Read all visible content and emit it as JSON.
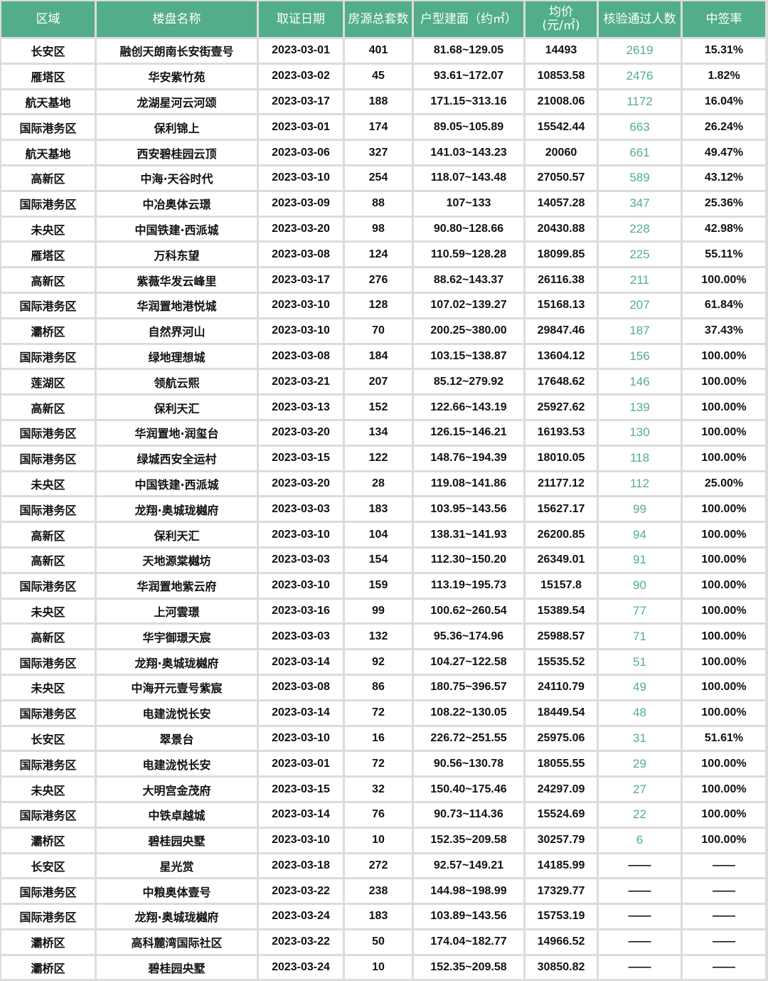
{
  "headers": [
    "区域",
    "楼盘名称",
    "取证日期",
    "房源总套数",
    "户型建面（约㎡）",
    "均价\n(元/㎡)",
    "核验通过人数",
    "中签率"
  ],
  "colors": {
    "header_bg": "#52ad8a",
    "highlight_text": "#52ad8a"
  },
  "rows": [
    [
      "长安区",
      "融创天朗南长安街壹号",
      "2023-03-01",
      "401",
      "81.68~129.05",
      "14493",
      "2619",
      "15.31%"
    ],
    [
      "雁塔区",
      "华安紫竹苑",
      "2023-03-02",
      "45",
      "93.61~172.07",
      "10853.58",
      "2476",
      "1.82%"
    ],
    [
      "航天基地",
      "龙湖星河云河颂",
      "2023-03-17",
      "188",
      "171.15~313.16",
      "21008.06",
      "1172",
      "16.04%"
    ],
    [
      "国际港务区",
      "保利锦上",
      "2023-03-01",
      "174",
      "89.05~105.89",
      "15542.44",
      "663",
      "26.24%"
    ],
    [
      "航天基地",
      "西安碧桂园云顶",
      "2023-03-06",
      "327",
      "141.03~143.23",
      "20060",
      "661",
      "49.47%"
    ],
    [
      "高新区",
      "中海·天谷时代",
      "2023-03-10",
      "254",
      "118.07~143.48",
      "27050.57",
      "589",
      "43.12%"
    ],
    [
      "国际港务区",
      "中冶奥体云璟",
      "2023-03-09",
      "88",
      "107~133",
      "14057.28",
      "347",
      "25.36%"
    ],
    [
      "未央区",
      "中国铁建·西派城",
      "2023-03-20",
      "98",
      "90.80~128.66",
      "20430.88",
      "228",
      "42.98%"
    ],
    [
      "雁塔区",
      "万科东望",
      "2023-03-08",
      "124",
      "110.59~128.28",
      "18099.85",
      "225",
      "55.11%"
    ],
    [
      "高新区",
      "紫薇华发云峰里",
      "2023-03-17",
      "276",
      "88.62~143.37",
      "26116.38",
      "211",
      "100.00%"
    ],
    [
      "国际港务区",
      "华润置地港悦城",
      "2023-03-10",
      "128",
      "107.02~139.27",
      "15168.13",
      "207",
      "61.84%"
    ],
    [
      "灞桥区",
      "自然界河山",
      "2023-03-10",
      "70",
      "200.25~380.00",
      "29847.46",
      "187",
      "37.43%"
    ],
    [
      "国际港务区",
      "绿地理想城",
      "2023-03-08",
      "184",
      "103.15~138.87",
      "13604.12",
      "156",
      "100.00%"
    ],
    [
      "莲湖区",
      "领航云熙",
      "2023-03-21",
      "207",
      "85.12~279.92",
      "17648.62",
      "146",
      "100.00%"
    ],
    [
      "高新区",
      "保利天汇",
      "2023-03-13",
      "152",
      "122.66~143.19",
      "25927.62",
      "139",
      "100.00%"
    ],
    [
      "国际港务区",
      "华润置地·润玺台",
      "2023-03-20",
      "134",
      "126.15~146.21",
      "16193.53",
      "130",
      "100.00%"
    ],
    [
      "国际港务区",
      "绿城西安全运村",
      "2023-03-15",
      "122",
      "148.76~194.39",
      "18010.05",
      "118",
      "100.00%"
    ],
    [
      "未央区",
      "中国铁建·西派城",
      "2023-03-20",
      "28",
      "119.08~141.86",
      "21177.12",
      "112",
      "25.00%"
    ],
    [
      "国际港务区",
      "龙翔·奥城珑樾府",
      "2023-03-03",
      "183",
      "103.95~143.56",
      "15627.17",
      "99",
      "100.00%"
    ],
    [
      "高新区",
      "保利天汇",
      "2023-03-10",
      "104",
      "138.31~141.93",
      "26200.85",
      "94",
      "100.00%"
    ],
    [
      "高新区",
      "天地源棠樾坊",
      "2023-03-03",
      "154",
      "112.30~150.20",
      "26349.01",
      "91",
      "100.00%"
    ],
    [
      "国际港务区",
      "华润置地紫云府",
      "2023-03-10",
      "159",
      "113.19~195.73",
      "15157.8",
      "90",
      "100.00%"
    ],
    [
      "未央区",
      "上河雲璟",
      "2023-03-16",
      "99",
      "100.62~260.54",
      "15389.54",
      "77",
      "100.00%"
    ],
    [
      "高新区",
      "华宇御璟天宸",
      "2023-03-03",
      "132",
      "95.36~174.96",
      "25988.57",
      "71",
      "100.00%"
    ],
    [
      "国际港务区",
      "龙翔·奥城珑樾府",
      "2023-03-14",
      "92",
      "104.27~122.58",
      "15535.52",
      "51",
      "100.00%"
    ],
    [
      "未央区",
      "中海开元壹号紫宸",
      "2023-03-08",
      "86",
      "180.75~396.57",
      "24110.79",
      "49",
      "100.00%"
    ],
    [
      "国际港务区",
      "电建泷悦长安",
      "2023-03-14",
      "72",
      "108.22~130.05",
      "18449.54",
      "48",
      "100.00%"
    ],
    [
      "长安区",
      "翠景台",
      "2023-03-10",
      "16",
      "226.72~251.55",
      "25975.06",
      "31",
      "51.61%"
    ],
    [
      "国际港务区",
      "电建泷悦长安",
      "2023-03-01",
      "72",
      "90.56~130.78",
      "18055.55",
      "29",
      "100.00%"
    ],
    [
      "未央区",
      "大明宫金茂府",
      "2023-03-15",
      "32",
      "150.40~175.46",
      "24297.09",
      "27",
      "100.00%"
    ],
    [
      "国际港务区",
      "中铁卓越城",
      "2023-03-14",
      "76",
      "90.73~114.36",
      "15524.69",
      "22",
      "100.00%"
    ],
    [
      "灞桥区",
      "碧桂园央墅",
      "2023-03-10",
      "10",
      "152.35~209.58",
      "30257.79",
      "6",
      "100.00%"
    ],
    [
      "长安区",
      "星光赏",
      "2023-03-18",
      "272",
      "92.57~149.21",
      "14185.99",
      "——",
      "——"
    ],
    [
      "国际港务区",
      "中粮奥体壹号",
      "2023-03-22",
      "238",
      "144.98~198.99",
      "17329.77",
      "——",
      "——"
    ],
    [
      "国际港务区",
      "龙翔·奥城珑樾府",
      "2023-03-24",
      "183",
      "103.89~143.56",
      "15753.19",
      "——",
      "——"
    ],
    [
      "灞桥区",
      "高科麓湾国际社区",
      "2023-03-22",
      "50",
      "174.04~182.77",
      "14966.52",
      "——",
      "——"
    ],
    [
      "灞桥区",
      "碧桂园央墅",
      "2023-03-24",
      "10",
      "152.35~209.58",
      "30850.82",
      "——",
      "——"
    ]
  ]
}
